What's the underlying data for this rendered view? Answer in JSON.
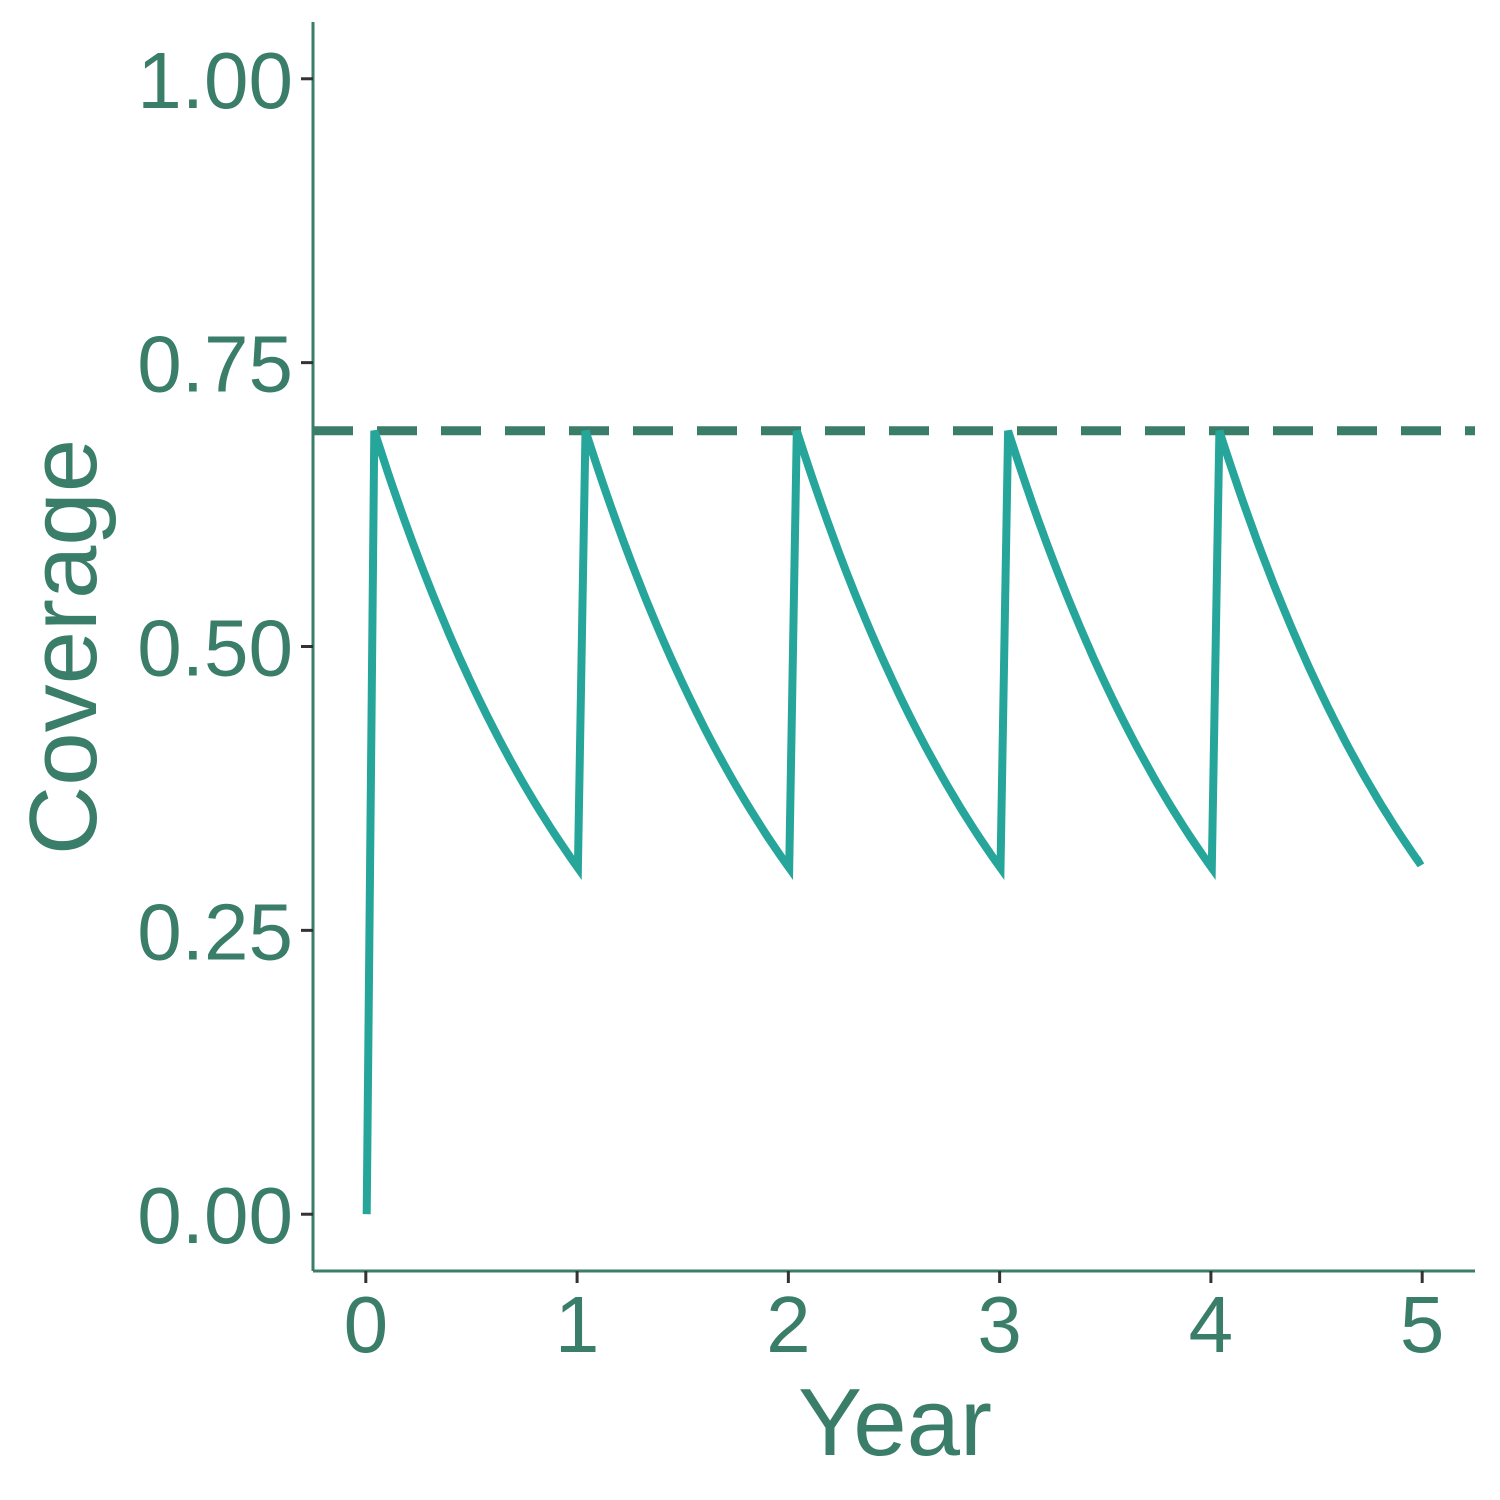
{
  "chart_data": {
    "type": "line",
    "title": "",
    "xlabel": "Year",
    "ylabel": "Coverage",
    "xlim": [
      -0.25,
      5.25
    ],
    "ylim": [
      -0.05,
      1.05
    ],
    "x_ticks": [
      0,
      1,
      2,
      3,
      4,
      5
    ],
    "x_tick_labels": [
      "0",
      "1",
      "2",
      "3",
      "4",
      "5"
    ],
    "y_ticks": [
      0,
      0.25,
      0.5,
      0.75,
      1.0
    ],
    "y_tick_labels": [
      "0.00",
      "0.25",
      "0.50",
      "0.75",
      "1.00"
    ],
    "grid": false,
    "legend": "none",
    "series": [
      {
        "kind": "solid-line",
        "color": "#26a69a",
        "campaign_starts": [
          0,
          1,
          2,
          3,
          4
        ],
        "campaign_ramp": 0.04,
        "peak": 0.69,
        "trough": 0.305,
        "x_end": 5.0,
        "y_end": 0.312
      }
    ],
    "reference_lines": [
      {
        "orientation": "horizontal",
        "y": 0.69,
        "style": "dashed",
        "color": "#3a7d68"
      }
    ],
    "colors": {
      "axis": "#3a7d68",
      "text": "#3a7d68",
      "tick": "#333333",
      "series": "#26a69a"
    }
  }
}
